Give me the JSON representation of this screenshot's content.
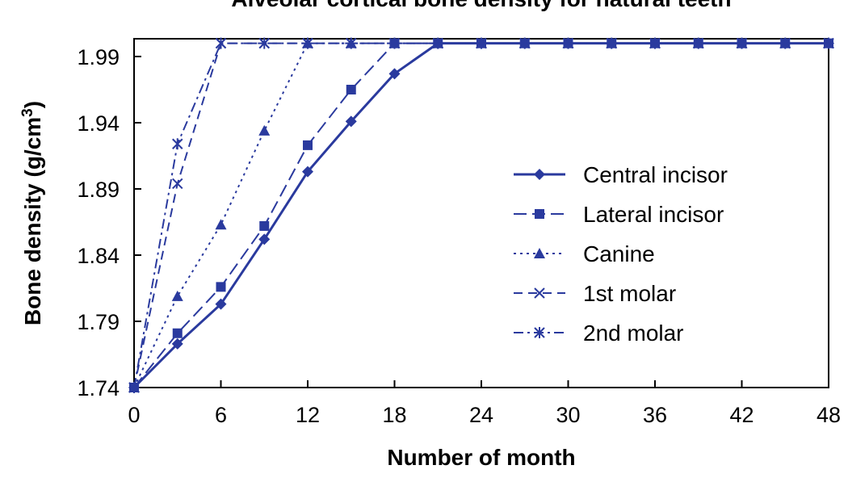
{
  "chart_data": {
    "type": "line",
    "title": "Alveolar cortical bone density for natural teeth",
    "xlabel": "Number of month",
    "ylabel_main": "Bone density (g/cm",
    "ylabel_sup": "3",
    "ylabel_tail": ")",
    "xlim": [
      0,
      48
    ],
    "ylim": [
      1.74,
      2.01
    ],
    "x_ticks": [
      "0",
      "6",
      "12",
      "18",
      "24",
      "30",
      "36",
      "42",
      "48"
    ],
    "y_ticks": [
      "1.74",
      "1.79",
      "1.84",
      "1.89",
      "1.94",
      "1.99"
    ],
    "grid": false,
    "legend_position": "right",
    "line_color": "#2a3a9e",
    "series": [
      {
        "name": "Central incisor",
        "marker": "diamond",
        "dash": "solid",
        "x": [
          0,
          3,
          6,
          9,
          12,
          15,
          18,
          21,
          24,
          27,
          30,
          33,
          36,
          39,
          42,
          45,
          48
        ],
        "y": [
          1.74,
          1.773,
          1.803,
          1.852,
          1.903,
          1.941,
          1.977,
          2.0,
          2.0,
          2.0,
          2.0,
          2.0,
          2.0,
          2.0,
          2.0,
          2.0,
          2.0
        ]
      },
      {
        "name": "Lateral incisor",
        "marker": "square",
        "dash": "long",
        "x": [
          0,
          3,
          6,
          9,
          12,
          15,
          18,
          21,
          24,
          27,
          30,
          33,
          36,
          39,
          42,
          45,
          48
        ],
        "y": [
          1.74,
          1.781,
          1.816,
          1.862,
          1.923,
          1.965,
          2.0,
          2.0,
          2.0,
          2.0,
          2.0,
          2.0,
          2.0,
          2.0,
          2.0,
          2.0,
          2.0
        ]
      },
      {
        "name": "Canine",
        "marker": "triangle",
        "dash": "dot",
        "x": [
          0,
          3,
          6,
          9,
          12,
          15,
          18,
          21,
          24,
          27,
          30,
          33,
          36,
          39,
          42,
          45,
          48
        ],
        "y": [
          1.74,
          1.809,
          1.863,
          1.934,
          2.0,
          2.0,
          2.0,
          2.0,
          2.0,
          2.0,
          2.0,
          2.0,
          2.0,
          2.0,
          2.0,
          2.0,
          2.0
        ]
      },
      {
        "name": "1st molar",
        "marker": "x",
        "dash": "dash",
        "x": [
          0,
          3,
          6,
          9,
          12,
          15,
          18,
          21,
          24,
          27,
          30,
          33,
          36,
          39,
          42,
          45,
          48
        ],
        "y": [
          1.74,
          1.894,
          2.0,
          2.0,
          2.0,
          2.0,
          2.0,
          2.0,
          2.0,
          2.0,
          2.0,
          2.0,
          2.0,
          2.0,
          2.0,
          2.0,
          2.0
        ]
      },
      {
        "name": "2nd molar",
        "marker": "asterisk",
        "dash": "dashdot",
        "x": [
          0,
          3,
          6,
          9,
          12,
          15,
          18,
          21,
          24,
          27,
          30,
          33,
          36,
          39,
          42,
          45,
          48
        ],
        "y": [
          1.74,
          1.924,
          2.0,
          2.0,
          2.0,
          2.0,
          2.0,
          2.0,
          2.0,
          2.0,
          2.0,
          2.0,
          2.0,
          2.0,
          2.0,
          2.0,
          2.0
        ]
      }
    ]
  }
}
